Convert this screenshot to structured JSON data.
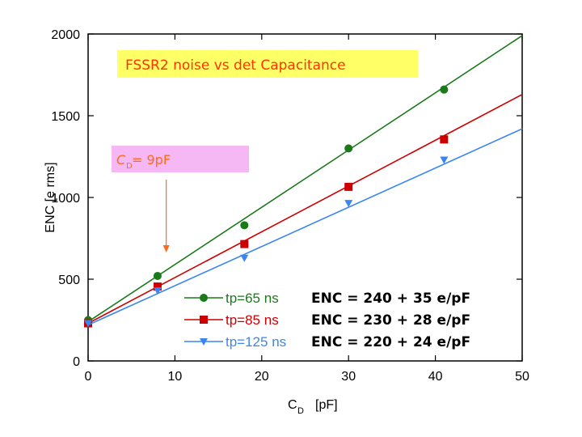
{
  "chart_data": {
    "type": "scatter",
    "title": "FSSR2 noise vs det Capacitance",
    "xlabel": "C",
    "xlabel_sub": "D",
    "xlabel_unit": "[pF]",
    "ylabel": "ENC [e rms]",
    "xlim": [
      0,
      50
    ],
    "ylim": [
      0,
      2000
    ],
    "x_ticks": [
      0,
      10,
      20,
      30,
      40,
      50
    ],
    "y_ticks": [
      0,
      500,
      1000,
      1500,
      2000
    ],
    "legend_position": "bottom-right",
    "series": [
      {
        "name": "tp=65 ns",
        "equation": "ENC = 240 + 35 e/pF",
        "color": "#1a7a1a",
        "marker": "circle",
        "fit": {
          "intercept": 240,
          "slope": 35
        },
        "x": [
          0,
          8,
          18,
          30,
          41
        ],
        "y": [
          250,
          520,
          830,
          1300,
          1660
        ]
      },
      {
        "name": "tp=85 ns",
        "equation": "ENC = 230 + 28 e/pF",
        "color": "#cc0000",
        "marker": "square",
        "fit": {
          "intercept": 230,
          "slope": 28
        },
        "x": [
          0,
          8,
          18,
          30,
          41
        ],
        "y": [
          230,
          455,
          715,
          1065,
          1355
        ]
      },
      {
        "name": "tp=125 ns",
        "equation": "ENC = 220 + 24 e/pF",
        "color": "#3a86f0",
        "marker": "triangle-down",
        "fit": {
          "intercept": 220,
          "slope": 24
        },
        "x": [
          0,
          8,
          18,
          30,
          41
        ],
        "y": [
          230,
          430,
          630,
          965,
          1230
        ]
      }
    ],
    "annotation": {
      "text_main": "C",
      "text_sub": "D",
      "text_rest": " = 9pF",
      "x": 9,
      "color": "#ff6a1a",
      "box_color": "#f5b8f5"
    },
    "title_box_color": "#ffff66",
    "title_color": "#ff3300"
  }
}
